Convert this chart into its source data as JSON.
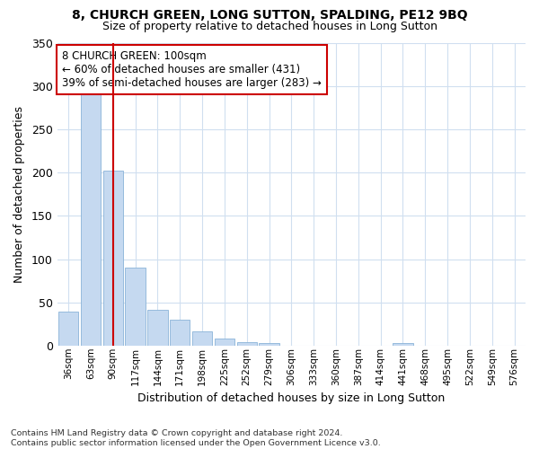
{
  "title": "8, CHURCH GREEN, LONG SUTTON, SPALDING, PE12 9BQ",
  "subtitle": "Size of property relative to detached houses in Long Sutton",
  "xlabel": "Distribution of detached houses by size in Long Sutton",
  "ylabel": "Number of detached properties",
  "categories": [
    "36sqm",
    "63sqm",
    "90sqm",
    "117sqm",
    "144sqm",
    "171sqm",
    "198sqm",
    "225sqm",
    "252sqm",
    "279sqm",
    "306sqm",
    "333sqm",
    "360sqm",
    "387sqm",
    "414sqm",
    "441sqm",
    "468sqm",
    "495sqm",
    "522sqm",
    "549sqm",
    "576sqm"
  ],
  "values": [
    40,
    290,
    202,
    90,
    42,
    30,
    17,
    8,
    4,
    3,
    0,
    0,
    0,
    0,
    0,
    3,
    0,
    0,
    0,
    0,
    0
  ],
  "bar_color": "#c5d9f0",
  "bar_edgecolor": "#8ab4d8",
  "bg_color": "#ffffff",
  "grid_color": "#d0dff0",
  "vline_x": 2,
  "vline_color": "#cc0000",
  "annotation_text": "8 CHURCH GREEN: 100sqm\n← 60% of detached houses are smaller (431)\n39% of semi-detached houses are larger (283) →",
  "annotation_box_edgecolor": "#cc0000",
  "annotation_bg": "#ffffff",
  "footnote": "Contains HM Land Registry data © Crown copyright and database right 2024.\nContains public sector information licensed under the Open Government Licence v3.0.",
  "ylim": [
    0,
    350
  ],
  "yticks": [
    0,
    50,
    100,
    150,
    200,
    250,
    300,
    350
  ]
}
